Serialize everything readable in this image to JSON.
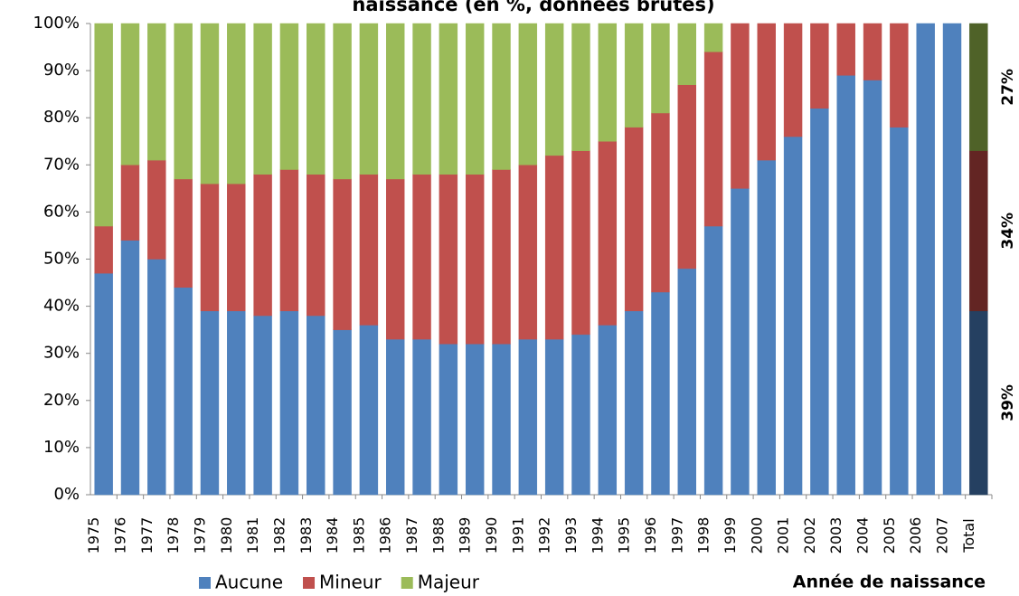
{
  "chart_data": {
    "type": "stacked_bar_100",
    "title": "naissance (en %, données brutes)",
    "x_label": "Année de naissance",
    "categories": [
      "1975",
      "1976",
      "1977",
      "1978",
      "1979",
      "1980",
      "1981",
      "1982",
      "1983",
      "1984",
      "1985",
      "1986",
      "1987",
      "1988",
      "1989",
      "1990",
      "1991",
      "1992",
      "1993",
      "1994",
      "1995",
      "1996",
      "1997",
      "1998",
      "1999",
      "2000",
      "2001",
      "2002",
      "2003",
      "2004",
      "2005",
      "2006",
      "2007",
      "Total"
    ],
    "series": [
      {
        "name": "Aucune",
        "color": "#4f81bd",
        "highlight_color": "#254061",
        "values": [
          47,
          54,
          50,
          44,
          39,
          39,
          38,
          39,
          38,
          35,
          36,
          33,
          33,
          32,
          32,
          32,
          33,
          33,
          34,
          36,
          39,
          43,
          48,
          57,
          65,
          71,
          76,
          82,
          89,
          88,
          78,
          100,
          100,
          39
        ],
        "value_labels": [
          null,
          null,
          null,
          null,
          null,
          null,
          null,
          null,
          null,
          null,
          null,
          null,
          null,
          null,
          null,
          null,
          null,
          null,
          null,
          null,
          null,
          null,
          null,
          null,
          null,
          null,
          null,
          null,
          null,
          null,
          null,
          null,
          null,
          "39%"
        ]
      },
      {
        "name": "Mineur",
        "color": "#c0504d",
        "highlight_color": "#632523",
        "values": [
          10,
          16,
          21,
          23,
          27,
          27,
          30,
          30,
          30,
          32,
          32,
          34,
          35,
          36,
          36,
          37,
          37,
          39,
          39,
          39,
          39,
          38,
          39,
          37,
          35,
          29,
          24,
          18,
          11,
          12,
          22,
          0,
          0,
          34
        ],
        "value_labels": [
          null,
          null,
          null,
          null,
          null,
          null,
          null,
          null,
          null,
          null,
          null,
          null,
          null,
          null,
          null,
          null,
          null,
          null,
          null,
          null,
          null,
          null,
          null,
          null,
          null,
          null,
          null,
          null,
          null,
          null,
          null,
          null,
          null,
          "34%"
        ]
      },
      {
        "name": "Majeur",
        "color": "#9bbb59",
        "highlight_color": "#4f6228",
        "values": [
          43,
          30,
          29,
          33,
          34,
          34,
          32,
          31,
          32,
          33,
          32,
          33,
          32,
          32,
          32,
          31,
          30,
          28,
          27,
          25,
          22,
          19,
          13,
          6,
          0,
          0,
          0,
          0,
          0,
          0,
          0,
          0,
          0,
          27
        ],
        "value_labels": [
          null,
          null,
          null,
          null,
          null,
          null,
          null,
          null,
          null,
          null,
          null,
          null,
          null,
          null,
          null,
          null,
          null,
          null,
          null,
          null,
          null,
          null,
          null,
          null,
          null,
          null,
          null,
          null,
          null,
          null,
          null,
          null,
          null,
          "27%"
        ]
      }
    ],
    "ylim": [
      0,
      100
    ],
    "yticks": [
      {
        "value": 0,
        "label": "0%"
      },
      {
        "value": 10,
        "label": "10%"
      },
      {
        "value": 20,
        "label": "20%"
      },
      {
        "value": 30,
        "label": "30%"
      },
      {
        "value": 40,
        "label": "40%"
      },
      {
        "value": 50,
        "label": "50%"
      },
      {
        "value": 60,
        "label": "60%"
      },
      {
        "value": 70,
        "label": "70%"
      },
      {
        "value": 80,
        "label": "80%"
      },
      {
        "value": 90,
        "label": "90%"
      },
      {
        "value": 100,
        "label": "100%"
      }
    ],
    "legend": "bottom",
    "grid": false
  }
}
